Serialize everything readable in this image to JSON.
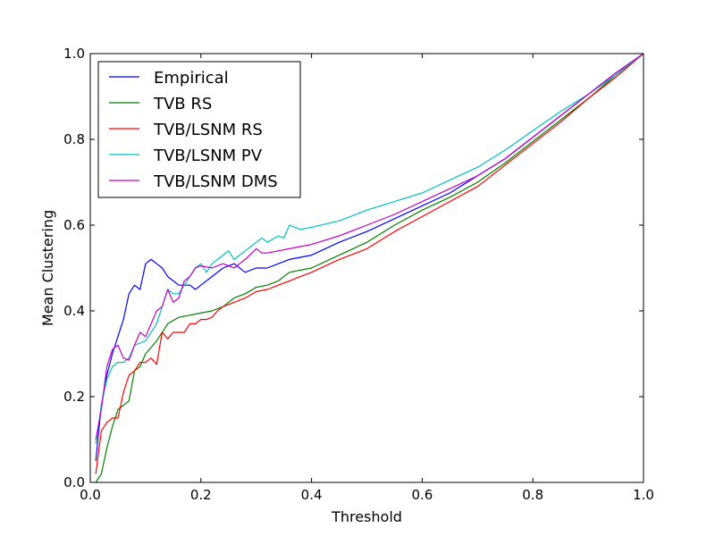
{
  "chart_data": {
    "type": "line",
    "title": "",
    "xlabel": "Threshold",
    "ylabel": "Mean Clustering",
    "xlim": [
      0,
      1
    ],
    "ylim": [
      0,
      1
    ],
    "xticks": [
      "0.0",
      "0.2",
      "0.4",
      "0.6",
      "0.8",
      "1.0"
    ],
    "yticks": [
      "0.0",
      "0.2",
      "0.4",
      "0.6",
      "0.8",
      "1.0"
    ],
    "grid": false,
    "legend_position": "upper-left",
    "series": [
      {
        "name": "Empirical",
        "color": "#0000ff",
        "x": [
          0.01,
          0.02,
          0.03,
          0.04,
          0.05,
          0.06,
          0.07,
          0.08,
          0.09,
          0.1,
          0.11,
          0.12,
          0.13,
          0.14,
          0.15,
          0.16,
          0.17,
          0.18,
          0.19,
          0.2,
          0.22,
          0.24,
          0.26,
          0.28,
          0.3,
          0.32,
          0.34,
          0.36,
          0.38,
          0.4,
          0.45,
          0.5,
          0.55,
          0.6,
          0.65,
          0.7,
          0.75,
          0.8,
          0.85,
          0.9,
          0.95,
          1.0
        ],
        "y": [
          0.05,
          0.18,
          0.25,
          0.3,
          0.34,
          0.38,
          0.44,
          0.46,
          0.45,
          0.51,
          0.52,
          0.51,
          0.5,
          0.48,
          0.47,
          0.46,
          0.46,
          0.46,
          0.45,
          0.46,
          0.48,
          0.5,
          0.51,
          0.49,
          0.5,
          0.5,
          0.51,
          0.52,
          0.525,
          0.53,
          0.56,
          0.585,
          0.615,
          0.645,
          0.675,
          0.715,
          0.755,
          0.805,
          0.855,
          0.905,
          0.955,
          1.0
        ]
      },
      {
        "name": "TVB RS",
        "color": "#008000",
        "x": [
          0.01,
          0.02,
          0.03,
          0.04,
          0.05,
          0.06,
          0.07,
          0.08,
          0.09,
          0.1,
          0.12,
          0.14,
          0.16,
          0.18,
          0.2,
          0.22,
          0.24,
          0.26,
          0.28,
          0.3,
          0.32,
          0.34,
          0.36,
          0.38,
          0.4,
          0.45,
          0.5,
          0.55,
          0.6,
          0.65,
          0.7,
          0.75,
          0.8,
          0.85,
          0.9,
          0.95,
          1.0
        ],
        "y": [
          0.0,
          0.02,
          0.08,
          0.13,
          0.17,
          0.18,
          0.19,
          0.26,
          0.27,
          0.3,
          0.33,
          0.37,
          0.385,
          0.39,
          0.395,
          0.4,
          0.41,
          0.43,
          0.44,
          0.455,
          0.46,
          0.47,
          0.49,
          0.495,
          0.5,
          0.53,
          0.56,
          0.6,
          0.635,
          0.665,
          0.7,
          0.745,
          0.795,
          0.845,
          0.895,
          0.95,
          1.0
        ]
      },
      {
        "name": "TVB/LSNM RS",
        "color": "#ff0000",
        "x": [
          0.01,
          0.02,
          0.03,
          0.04,
          0.05,
          0.06,
          0.07,
          0.08,
          0.09,
          0.1,
          0.11,
          0.12,
          0.13,
          0.14,
          0.15,
          0.16,
          0.17,
          0.18,
          0.19,
          0.2,
          0.21,
          0.22,
          0.23,
          0.24,
          0.26,
          0.28,
          0.3,
          0.32,
          0.34,
          0.36,
          0.38,
          0.4,
          0.45,
          0.5,
          0.55,
          0.6,
          0.65,
          0.7,
          0.75,
          0.8,
          0.85,
          0.9,
          0.95,
          1.0
        ],
        "y": [
          0.02,
          0.12,
          0.14,
          0.15,
          0.15,
          0.21,
          0.25,
          0.26,
          0.28,
          0.28,
          0.29,
          0.275,
          0.35,
          0.335,
          0.35,
          0.35,
          0.35,
          0.37,
          0.37,
          0.38,
          0.38,
          0.385,
          0.4,
          0.41,
          0.42,
          0.43,
          0.445,
          0.45,
          0.46,
          0.47,
          0.48,
          0.49,
          0.52,
          0.545,
          0.585,
          0.62,
          0.655,
          0.69,
          0.74,
          0.79,
          0.84,
          0.895,
          0.945,
          1.0
        ]
      },
      {
        "name": "TVB/LSNM PV",
        "color": "#00bfbf",
        "x": [
          0.01,
          0.02,
          0.03,
          0.04,
          0.05,
          0.06,
          0.07,
          0.08,
          0.09,
          0.1,
          0.12,
          0.14,
          0.15,
          0.16,
          0.18,
          0.19,
          0.2,
          0.21,
          0.22,
          0.24,
          0.25,
          0.26,
          0.27,
          0.28,
          0.3,
          0.31,
          0.32,
          0.34,
          0.35,
          0.36,
          0.37,
          0.38,
          0.4,
          0.45,
          0.5,
          0.55,
          0.6,
          0.65,
          0.7,
          0.75,
          0.8,
          0.85,
          0.9,
          0.95,
          1.0
        ],
        "y": [
          0.09,
          0.18,
          0.24,
          0.27,
          0.28,
          0.28,
          0.29,
          0.32,
          0.325,
          0.33,
          0.37,
          0.45,
          0.44,
          0.44,
          0.48,
          0.5,
          0.51,
          0.49,
          0.51,
          0.53,
          0.54,
          0.52,
          0.53,
          0.54,
          0.56,
          0.57,
          0.56,
          0.575,
          0.57,
          0.6,
          0.595,
          0.59,
          0.595,
          0.61,
          0.635,
          0.655,
          0.675,
          0.705,
          0.735,
          0.775,
          0.82,
          0.865,
          0.905,
          0.95,
          1.0
        ]
      },
      {
        "name": "TVB/LSNM DMS",
        "color": "#bf00bf",
        "x": [
          0.01,
          0.02,
          0.03,
          0.04,
          0.05,
          0.06,
          0.07,
          0.08,
          0.09,
          0.1,
          0.12,
          0.13,
          0.14,
          0.15,
          0.16,
          0.17,
          0.18,
          0.19,
          0.2,
          0.22,
          0.24,
          0.26,
          0.28,
          0.3,
          0.31,
          0.32,
          0.34,
          0.36,
          0.38,
          0.4,
          0.45,
          0.5,
          0.55,
          0.6,
          0.65,
          0.7,
          0.75,
          0.8,
          0.85,
          0.9,
          0.95,
          1.0
        ],
        "y": [
          0.1,
          0.17,
          0.27,
          0.31,
          0.32,
          0.29,
          0.285,
          0.32,
          0.35,
          0.34,
          0.4,
          0.41,
          0.45,
          0.42,
          0.43,
          0.47,
          0.48,
          0.5,
          0.505,
          0.5,
          0.51,
          0.5,
          0.52,
          0.545,
          0.535,
          0.535,
          0.54,
          0.545,
          0.55,
          0.555,
          0.575,
          0.6,
          0.625,
          0.655,
          0.685,
          0.715,
          0.755,
          0.805,
          0.855,
          0.905,
          0.955,
          1.0
        ]
      }
    ]
  }
}
